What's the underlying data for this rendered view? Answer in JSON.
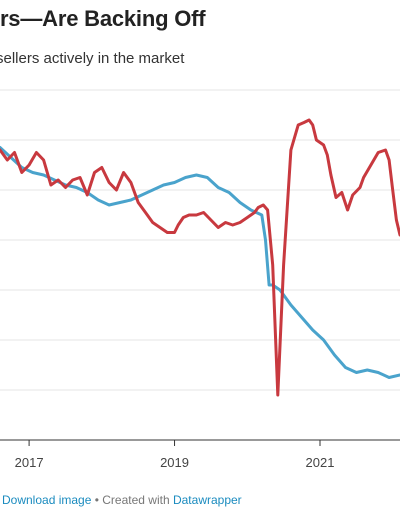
{
  "header": {
    "title": "lers—Are Backing Off",
    "subtitle": "sellers actively in the market"
  },
  "footer": {
    "download_label": "Download image",
    "separator": " • Created with ",
    "tool_label": "Datawrapper"
  },
  "chart_data": {
    "type": "line",
    "x_ticks": [
      {
        "value": 2017,
        "label": "2017"
      },
      {
        "value": 2019,
        "label": "2019"
      },
      {
        "value": 2021,
        "label": "2021"
      }
    ],
    "xlim": [
      2016.6,
      2022.1
    ],
    "ylim": [
      0,
      7
    ],
    "grid": true,
    "series": [
      {
        "color": "#4aa3cc",
        "x": [
          2016.6,
          2016.75,
          2016.9,
          2017.05,
          2017.2,
          2017.35,
          2017.5,
          2017.65,
          2017.8,
          2017.95,
          2018.1,
          2018.25,
          2018.4,
          2018.55,
          2018.7,
          2018.85,
          2019.0,
          2019.15,
          2019.3,
          2019.45,
          2019.6,
          2019.75,
          2019.9,
          2020.05,
          2020.2,
          2020.25,
          2020.3,
          2020.35,
          2020.45,
          2020.6,
          2020.75,
          2020.9,
          2021.05,
          2021.2,
          2021.35,
          2021.5,
          2021.65,
          2021.8,
          2021.95,
          2022.1
        ],
        "y": [
          5.85,
          5.65,
          5.45,
          5.35,
          5.3,
          5.2,
          5.1,
          5.05,
          4.95,
          4.8,
          4.7,
          4.75,
          4.8,
          4.9,
          5.0,
          5.1,
          5.15,
          5.25,
          5.3,
          5.25,
          5.05,
          4.95,
          4.75,
          4.6,
          4.5,
          4.0,
          3.1,
          3.1,
          3.0,
          2.7,
          2.45,
          2.2,
          2.0,
          1.7,
          1.45,
          1.35,
          1.4,
          1.35,
          1.25,
          1.3
        ]
      },
      {
        "color": "#c8393f",
        "x": [
          2016.6,
          2016.7,
          2016.8,
          2016.9,
          2017.0,
          2017.1,
          2017.2,
          2017.3,
          2017.4,
          2017.5,
          2017.6,
          2017.7,
          2017.8,
          2017.9,
          2018.0,
          2018.1,
          2018.2,
          2018.3,
          2018.4,
          2018.5,
          2018.6,
          2018.7,
          2018.8,
          2018.9,
          2019.0,
          2019.05,
          2019.12,
          2019.2,
          2019.3,
          2019.4,
          2019.5,
          2019.6,
          2019.7,
          2019.8,
          2019.9,
          2020.0,
          2020.05,
          2020.1,
          2020.15,
          2020.22,
          2020.28,
          2020.35,
          2020.42,
          2020.5,
          2020.6,
          2020.7,
          2020.78,
          2020.85,
          2020.9,
          2020.95,
          2021.0,
          2021.05,
          2021.1,
          2021.15,
          2021.22,
          2021.3,
          2021.38,
          2021.45,
          2021.55,
          2021.6,
          2021.7,
          2021.8,
          2021.9,
          2021.95,
          2022.0,
          2022.05,
          2022.1
        ],
        "y": [
          5.8,
          5.6,
          5.75,
          5.35,
          5.5,
          5.75,
          5.6,
          5.1,
          5.2,
          5.05,
          5.2,
          5.25,
          4.9,
          5.35,
          5.45,
          5.15,
          5.0,
          5.35,
          5.15,
          4.75,
          4.55,
          4.35,
          4.25,
          4.15,
          4.15,
          4.3,
          4.45,
          4.5,
          4.5,
          4.55,
          4.4,
          4.25,
          4.35,
          4.3,
          4.35,
          4.45,
          4.5,
          4.55,
          4.65,
          4.7,
          4.6,
          3.5,
          0.9,
          3.5,
          5.8,
          6.3,
          6.35,
          6.4,
          6.3,
          6.0,
          5.95,
          5.9,
          5.7,
          5.3,
          4.85,
          4.95,
          4.6,
          4.9,
          5.05,
          5.25,
          5.5,
          5.75,
          5.8,
          5.6,
          5.0,
          4.4,
          4.1
        ]
      }
    ]
  }
}
